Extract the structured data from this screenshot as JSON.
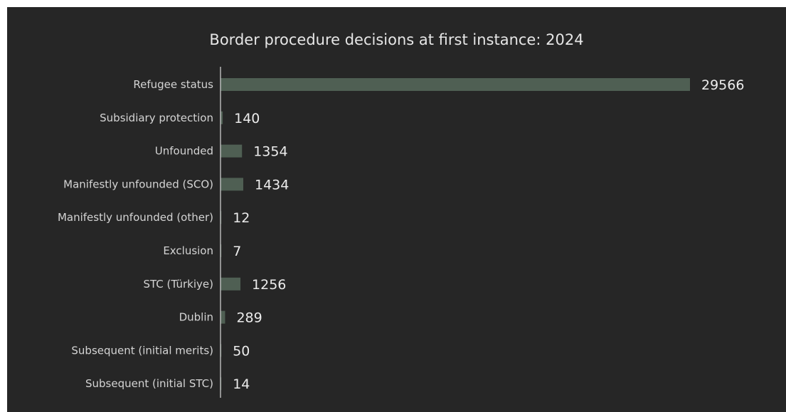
{
  "chart_data": {
    "type": "bar",
    "orientation": "horizontal",
    "title": "Border procedure decisions at first instance: 2024",
    "xlabel": "",
    "ylabel": "",
    "categories": [
      "Refugee status",
      "Subsidiary protection",
      "Unfounded",
      "Manifestly unfounded (SCO)",
      "Manifestly unfounded (other)",
      "Exclusion",
      "STC (Türkiye)",
      "Dublin",
      "Subsequent (initial merits)",
      "Subsequent (initial STC)"
    ],
    "values": [
      29566,
      140,
      1354,
      1434,
      12,
      7,
      1256,
      289,
      50,
      14
    ],
    "xlim": [
      0,
      29566
    ],
    "grid": false,
    "legend": "none",
    "colors": {
      "background": "#262626",
      "bar": "#4f5f53",
      "axis": "#d9d9d9",
      "text": "#d4d4d4"
    }
  }
}
